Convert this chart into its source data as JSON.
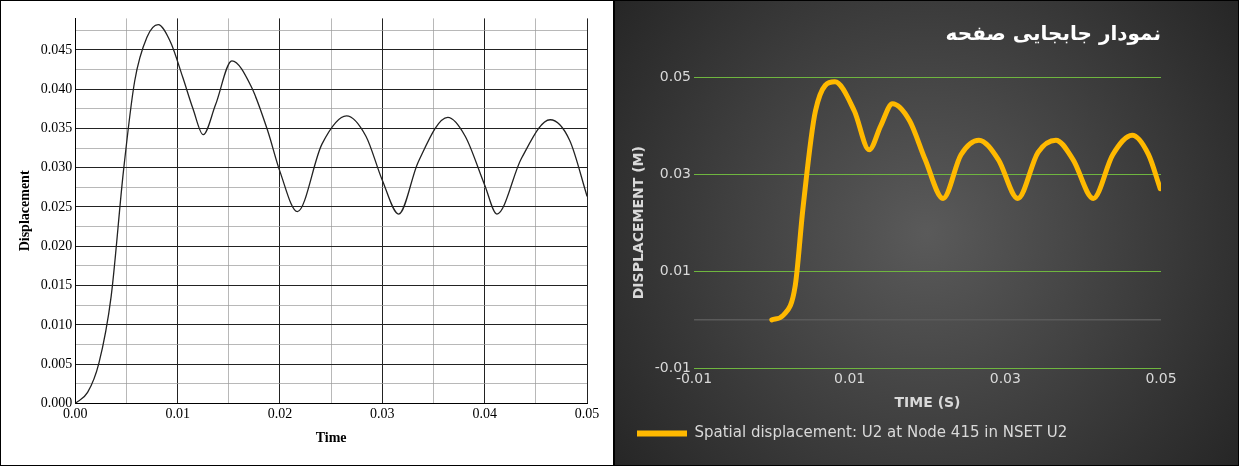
{
  "chart_data": [
    {
      "type": "line",
      "xlabel": "Time",
      "ylabel": "Displacement",
      "marker": "none",
      "grid": true,
      "xlim": [
        0,
        0.05
      ],
      "ylim": [
        0,
        0.049
      ],
      "xticks": [
        {
          "value": 0,
          "label": "0.00"
        },
        {
          "value": 0.005,
          "label": null
        },
        0.01,
        {
          "value": 0.015,
          "label": null
        },
        0.02,
        {
          "value": 0.025,
          "label": null
        },
        0.03,
        {
          "value": 0.035,
          "label": null
        },
        0.04,
        {
          "value": 0.045,
          "label": null
        },
        0.05
      ],
      "yticks": [
        {
          "value": 0,
          "label": "0.000"
        },
        {
          "value": 0.0025,
          "label": null
        },
        0.005,
        {
          "value": 0.0075,
          "label": null
        },
        {
          "value": 0.01,
          "label": "0.010"
        },
        {
          "value": 0.0125,
          "label": null
        },
        0.015,
        {
          "value": 0.0175,
          "label": null
        },
        {
          "value": 0.02,
          "label": "0.020"
        },
        {
          "value": 0.0225,
          "label": null
        },
        0.025,
        {
          "value": 0.0275,
          "label": null
        },
        {
          "value": 0.03,
          "label": "0.030"
        },
        {
          "value": 0.0325,
          "label": null
        },
        0.035,
        {
          "value": 0.0375,
          "label": null
        },
        {
          "value": 0.04,
          "label": "0.040"
        },
        {
          "value": 0.0425,
          "label": null
        },
        0.045,
        {
          "value": 0.0475,
          "label": null
        }
      ],
      "series": [
        {
          "color": "#222222",
          "x": [
            0,
            0.0012,
            0.0023,
            0.0035,
            0.0047,
            0.0058,
            0.007,
            0.0081,
            0.0093,
            0.0105,
            0.0115,
            0.0125,
            0.0137,
            0.0153,
            0.0172,
            0.0188,
            0.02,
            0.0217,
            0.0241,
            0.0265,
            0.0284,
            0.03,
            0.0316,
            0.0335,
            0.0364,
            0.0381,
            0.04,
            0.0412,
            0.0436,
            0.0464,
            0.0483,
            0.05
          ],
          "values": [
            0,
            0.0014,
            0.0051,
            0.0136,
            0.0295,
            0.041,
            0.0466,
            0.0482,
            0.046,
            0.0415,
            0.0375,
            0.0342,
            0.038,
            0.0436,
            0.0403,
            0.0347,
            0.0295,
            0.0244,
            0.033,
            0.0366,
            0.034,
            0.0284,
            0.0241,
            0.0307,
            0.0364,
            0.034,
            0.0278,
            0.0241,
            0.0312,
            0.0361,
            0.0335,
            0.0264
          ]
        }
      ]
    },
    {
      "type": "line",
      "title": "نمودار جابجایی صفحه",
      "xlabel": "TIME (S)",
      "ylabel": "DISPLACEMENT (M)",
      "marker": "none",
      "grid": "y",
      "legend": "bottom",
      "xlim": [
        -0.01,
        0.05
      ],
      "ylim": [
        -0.01,
        0.05
      ],
      "xticks": [
        -0.01,
        0.01,
        0.03,
        0.05
      ],
      "yticks": [
        -0.01,
        0.01,
        0.03,
        0.05
      ],
      "ref_lines": [
        {
          "axis": "y",
          "value": 0,
          "color": "#5a5a5a"
        }
      ],
      "series": [
        {
          "name": "Spatial displacement: U2 at Node 415 in NSET U2",
          "color": "#ffb900",
          "x": [
            0,
            0.0015,
            0.003,
            0.004,
            0.0056,
            0.0081,
            0.0106,
            0.0125,
            0.014,
            0.0155,
            0.0177,
            0.0197,
            0.022,
            0.0243,
            0.0266,
            0.0291,
            0.0316,
            0.0342,
            0.0365,
            0.0387,
            0.0413,
            0.0438,
            0.0463,
            0.0484,
            0.0499
          ],
          "values": [
            0,
            0.001,
            0.007,
            0.023,
            0.043,
            0.049,
            0.043,
            0.035,
            0.04,
            0.0445,
            0.041,
            0.033,
            0.025,
            0.034,
            0.037,
            0.033,
            0.025,
            0.0345,
            0.037,
            0.033,
            0.025,
            0.034,
            0.038,
            0.034,
            0.027
          ]
        }
      ]
    }
  ]
}
